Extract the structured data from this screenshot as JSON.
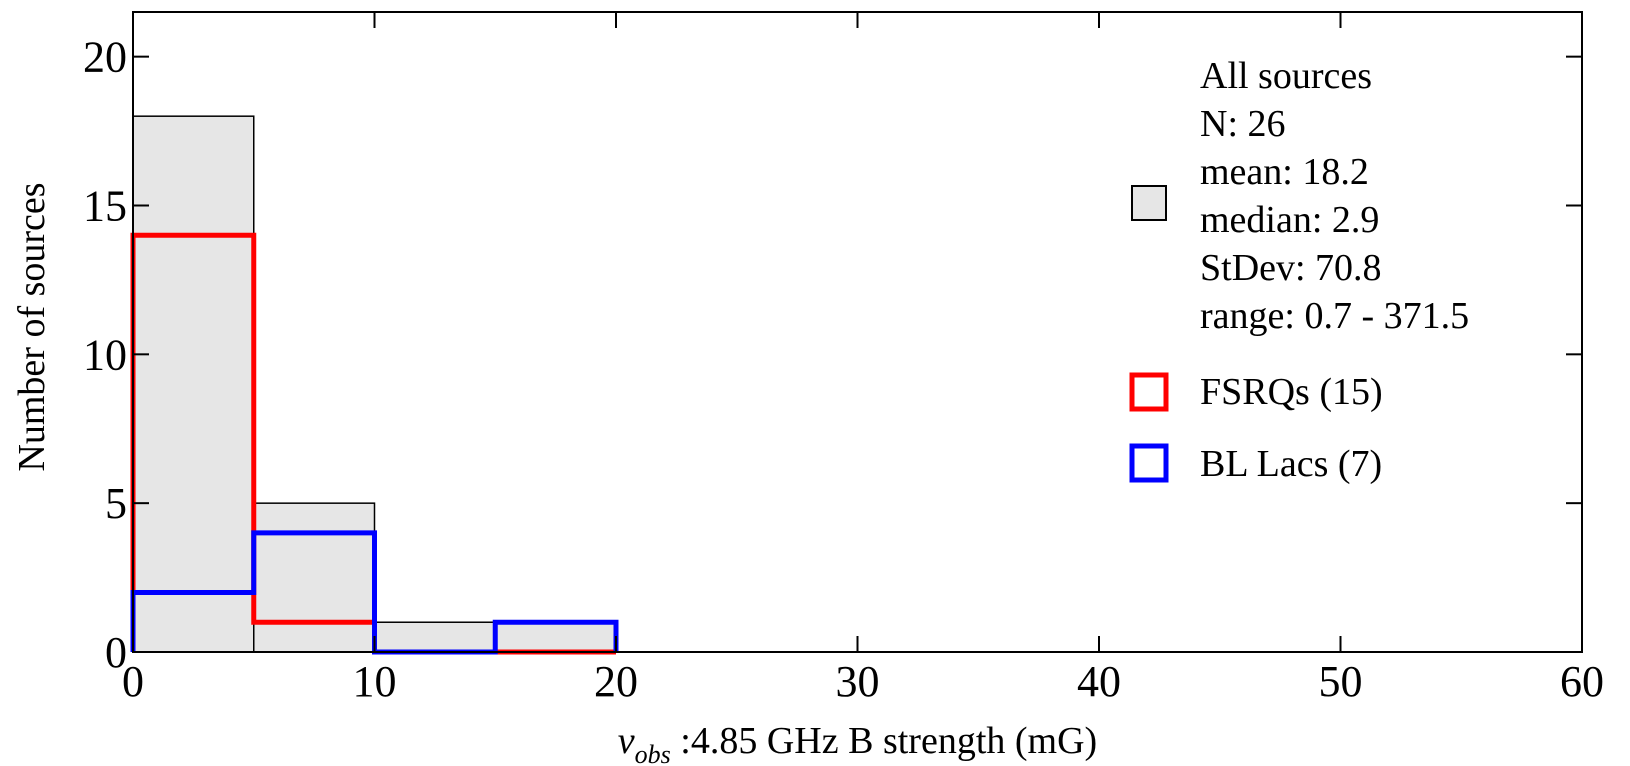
{
  "chart_data": {
    "type": "bar",
    "subtype": "histogram",
    "xlabel_symbol": "ν",
    "xlabel_sub": "obs",
    "xlabel_rest": " :4.85 GHz B strength (mG)",
    "ylabel": "Number of sources",
    "xlim": [
      0,
      60
    ],
    "ylim": [
      0,
      21.5
    ],
    "xticks": [
      0,
      10,
      20,
      30,
      40,
      50,
      60
    ],
    "yticks": [
      0,
      5,
      10,
      15,
      20
    ],
    "xtick_labels": [
      "0",
      "10",
      "20",
      "30",
      "40",
      "50",
      "60"
    ],
    "ytick_labels": [
      "0",
      "5",
      "10",
      "15",
      "20"
    ],
    "bin_edges": [
      0,
      5,
      10,
      15,
      20
    ],
    "series": [
      {
        "name": "All sources",
        "style": "filled",
        "color": "#e6e6e6",
        "edge": "#000000",
        "values": [
          18,
          5,
          1,
          1
        ]
      },
      {
        "name": "FSRQs (15)",
        "style": "step",
        "color": "#ff0000",
        "values": [
          14,
          1,
          0,
          0
        ]
      },
      {
        "name": "BL Lacs (7)",
        "style": "step",
        "color": "#0000ff",
        "values": [
          2,
          4,
          0,
          1
        ]
      }
    ],
    "legend": {
      "placement": "right",
      "all_sources_lines": [
        "All sources",
        "N: 26",
        "mean: 18.2",
        "median: 2.9",
        "StDev: 70.8",
        "range: 0.7 - 371.5"
      ],
      "fsrq_label": "FSRQs (15)",
      "bllac_label": "BL Lacs (7)"
    },
    "grid": false
  }
}
